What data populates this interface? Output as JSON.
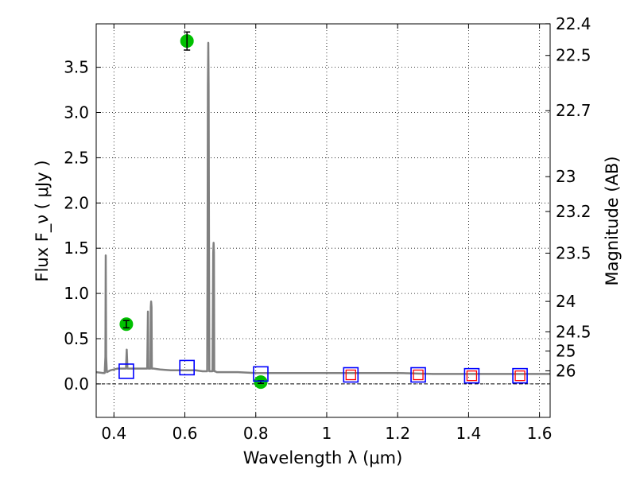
{
  "chart_data": {
    "type": "scatter",
    "xlabel": "Wavelength  λ (μm)",
    "ylabel": "Flux  F_ν  ( μJy )",
    "y2label": "Magnitude (AB)",
    "xlim": [
      0.35,
      1.63
    ],
    "ylim": [
      -0.37,
      3.98
    ],
    "grid": true,
    "x_ticks": [
      {
        "value": 0.4,
        "label": "0.4"
      },
      {
        "value": 0.6,
        "label": "0.6"
      },
      {
        "value": 0.8,
        "label": "0.8"
      },
      {
        "value": 1.0,
        "label": "1"
      },
      {
        "value": 1.2,
        "label": "1.2"
      },
      {
        "value": 1.4,
        "label": "1.4"
      },
      {
        "value": 1.6,
        "label": "1.6"
      }
    ],
    "y_ticks": [
      {
        "value": 0.0,
        "label": "0.0"
      },
      {
        "value": 0.5,
        "label": "0.5"
      },
      {
        "value": 1.0,
        "label": "1.0"
      },
      {
        "value": 1.5,
        "label": "1.5"
      },
      {
        "value": 2.0,
        "label": "2.0"
      },
      {
        "value": 2.5,
        "label": "2.5"
      },
      {
        "value": 3.0,
        "label": "3.0"
      },
      {
        "value": 3.5,
        "label": "3.5"
      }
    ],
    "mag_ticks": [
      {
        "value": 22.4,
        "label": "22.4"
      },
      {
        "value": 22.5,
        "label": "22.5"
      },
      {
        "value": 22.7,
        "label": "22.7"
      },
      {
        "value": 23.0,
        "label": "23"
      },
      {
        "value": 23.2,
        "label": "23.2"
      },
      {
        "value": 23.5,
        "label": "23.5"
      },
      {
        "value": 24.0,
        "label": "24"
      },
      {
        "value": 24.5,
        "label": "24.5"
      },
      {
        "value": 25.0,
        "label": "25"
      },
      {
        "value": 26.0,
        "label": "26"
      }
    ],
    "series": [
      {
        "kind": "spectrum",
        "color": "#808080",
        "x": [
          0.35,
          0.37,
          0.374,
          0.376,
          0.377,
          0.378,
          0.38,
          0.385,
          0.39,
          0.4,
          0.41,
          0.42,
          0.43,
          0.434,
          0.436,
          0.438,
          0.44,
          0.45,
          0.47,
          0.485,
          0.494,
          0.496,
          0.497,
          0.498,
          0.5,
          0.503,
          0.504,
          0.505,
          0.506,
          0.507,
          0.509,
          0.512,
          0.53,
          0.56,
          0.6,
          0.63,
          0.65,
          0.655,
          0.66,
          0.663,
          0.664,
          0.665,
          0.666,
          0.667,
          0.668,
          0.669,
          0.67,
          0.672,
          0.676,
          0.678,
          0.68,
          0.681,
          0.682,
          0.683,
          0.685,
          0.69,
          0.7,
          0.75,
          0.8,
          0.9,
          1.0,
          1.1,
          1.2,
          1.3,
          1.4,
          1.5,
          1.63
        ],
        "y": [
          0.13,
          0.12,
          0.12,
          0.3,
          1.42,
          0.3,
          0.13,
          0.14,
          0.15,
          0.16,
          0.17,
          0.17,
          0.17,
          0.17,
          0.38,
          0.17,
          0.17,
          0.17,
          0.17,
          0.17,
          0.17,
          0.8,
          0.17,
          0.17,
          0.17,
          0.17,
          0.85,
          0.91,
          0.85,
          0.17,
          0.17,
          0.17,
          0.16,
          0.15,
          0.15,
          0.15,
          0.14,
          0.14,
          0.14,
          0.14,
          1.5,
          3.3,
          3.77,
          3.3,
          1.5,
          0.14,
          0.14,
          0.14,
          0.14,
          0.14,
          1.45,
          1.56,
          1.45,
          0.14,
          0.14,
          0.13,
          0.13,
          0.13,
          0.12,
          0.12,
          0.12,
          0.12,
          0.12,
          0.11,
          0.11,
          0.11,
          0.11
        ]
      },
      {
        "kind": "observed",
        "color": "#00c000",
        "points": [
          {
            "x": 0.435,
            "y": 0.66,
            "err": 0.04
          },
          {
            "x": 0.606,
            "y": 3.79,
            "err": 0.1
          },
          {
            "x": 0.814,
            "y": 0.02,
            "err": 0.015
          }
        ]
      },
      {
        "kind": "model-photometry",
        "color": "#0000ff",
        "points": [
          {
            "x": 0.435,
            "y": 0.14
          },
          {
            "x": 0.606,
            "y": 0.18
          },
          {
            "x": 0.814,
            "y": 0.11
          },
          {
            "x": 1.068,
            "y": 0.1
          },
          {
            "x": 1.258,
            "y": 0.1
          },
          {
            "x": 1.409,
            "y": 0.09
          },
          {
            "x": 1.545,
            "y": 0.09
          }
        ]
      },
      {
        "kind": "model-photometry-ir",
        "color": "#ff0000",
        "points": [
          {
            "x": 1.068,
            "y": 0.1
          },
          {
            "x": 1.258,
            "y": 0.1
          },
          {
            "x": 1.409,
            "y": 0.09
          },
          {
            "x": 1.545,
            "y": 0.09
          }
        ]
      }
    ]
  }
}
